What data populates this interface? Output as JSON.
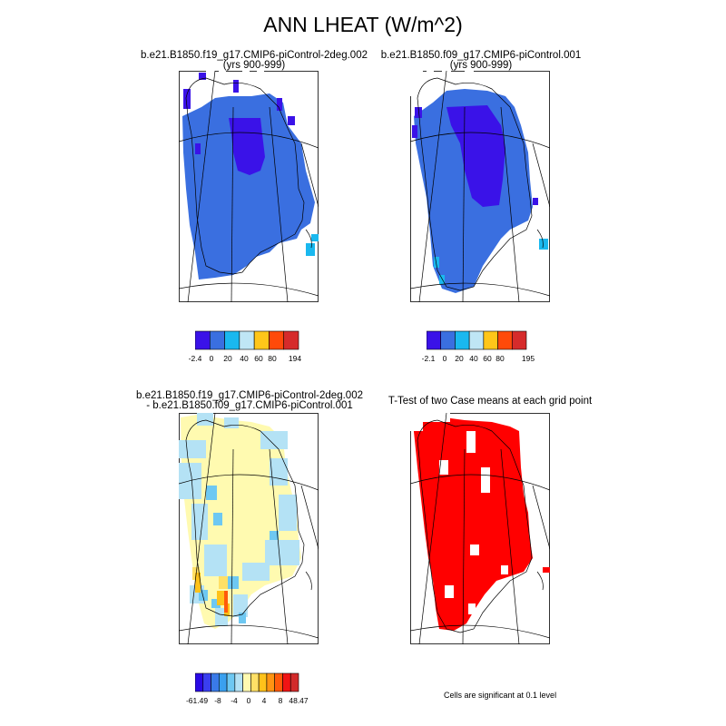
{
  "title": "ANN LHEAT (W/m^2)",
  "panels": [
    {
      "title_line1": "b.e21.B1850.f19_g17.CMIP6-piControl-2deg.002",
      "title_line2": "(yrs 900-999)",
      "colorbar_labels": [
        "-2.4",
        "0",
        "20",
        "40",
        "60",
        "80",
        "194"
      ],
      "colorbar_colors": [
        "#3a12e8",
        "#3a6fe0",
        "#1ab8ef",
        "#bfe6f5",
        "#ffc619",
        "#ff4a0a",
        "#d62b2b"
      ]
    },
    {
      "title_line1": "b.e21.B1850.f09_g17.CMIP6-piControl.001",
      "title_line2": "(yrs 900-999)",
      "colorbar_labels": [
        "-2.1",
        "0",
        "20",
        "40",
        "60",
        "80",
        "195"
      ],
      "colorbar_colors": [
        "#3a12e8",
        "#3a6fe0",
        "#1ab8ef",
        "#bfe6f5",
        "#ffc619",
        "#ff4a0a",
        "#d62b2b"
      ]
    },
    {
      "title_line1": "b.e21.B1850.f19_g17.CMIP6-piControl-2deg.002",
      "title_line2": "- b.e21.B1850.f09_g17.CMIP6-piControl.001",
      "colorbar_labels": [
        "-61.49",
        "-8",
        "-4",
        "0",
        "4",
        "8",
        "48.47"
      ],
      "colorbar_colors": [
        "#2a0ae6",
        "#3a3ff0",
        "#3a7ae8",
        "#3aa0ef",
        "#6ec8f2",
        "#b4e2f5",
        "#fffab0",
        "#ffe066",
        "#ffc21a",
        "#ff9412",
        "#ff5a0a",
        "#f01414",
        "#d22a2a"
      ]
    },
    {
      "title_line1": "T-Test of two Case means at each grid point",
      "note": "Cells are significant at 0.1 level"
    }
  ]
}
